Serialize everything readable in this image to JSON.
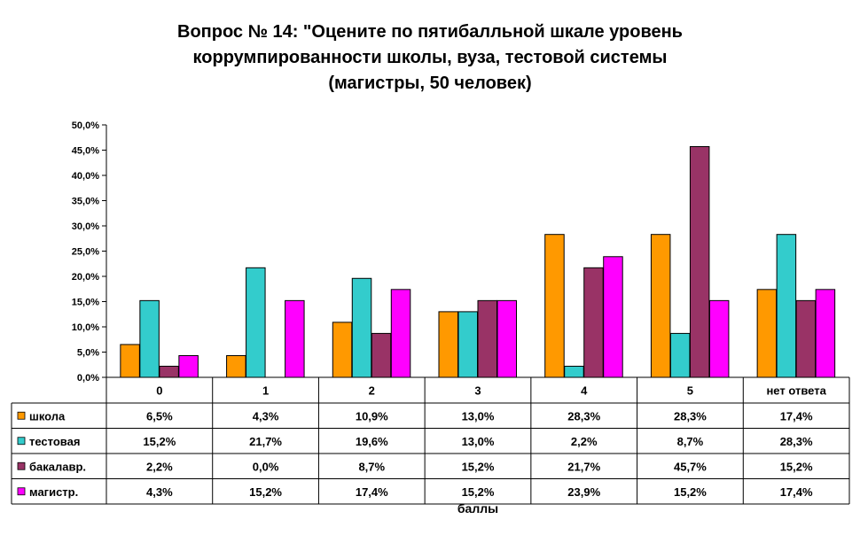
{
  "chart_data": {
    "type": "bar",
    "title_lines": [
      "Вопрос № 14: \"Оцените по пятибалльной шкале уровень",
      "коррумпированности школы, вуза, тестовой системы",
      "(магистры, 50 человек)"
    ],
    "xlabel": "баллы",
    "ylabel": "",
    "ylim": [
      0,
      50
    ],
    "y_ticks": [
      "0,0%",
      "5,0%",
      "10,0%",
      "15,0%",
      "20,0%",
      "25,0%",
      "30,0%",
      "35,0%",
      "40,0%",
      "45,0%",
      "50,0%"
    ],
    "grid": false,
    "legend": "data table",
    "categories": [
      "0",
      "1",
      "2",
      "3",
      "4",
      "5",
      "нет ответа"
    ],
    "series": [
      {
        "name": "школа",
        "color": "#FF9900",
        "values": [
          6.5,
          4.3,
          10.9,
          13.0,
          28.3,
          28.3,
          17.4
        ],
        "labels": [
          "6,5%",
          "4,3%",
          "10,9%",
          "13,0%",
          "28,3%",
          "28,3%",
          "17,4%"
        ]
      },
      {
        "name": "тестовая",
        "color": "#33CCCC",
        "values": [
          15.2,
          21.7,
          19.6,
          13.0,
          2.2,
          8.7,
          28.3
        ],
        "labels": [
          "15,2%",
          "21,7%",
          "19,6%",
          "13,0%",
          "2,2%",
          "8,7%",
          "28,3%"
        ]
      },
      {
        "name": "бакалавр.",
        "color": "#993366",
        "values": [
          2.2,
          0.0,
          8.7,
          15.2,
          21.7,
          45.7,
          15.2
        ],
        "labels": [
          "2,2%",
          "0,0%",
          "8,7%",
          "15,2%",
          "21,7%",
          "45,7%",
          "15,2%"
        ]
      },
      {
        "name": "магистр.",
        "color": "#FF00FF",
        "values": [
          4.3,
          15.2,
          17.4,
          15.2,
          23.9,
          15.2,
          17.4
        ],
        "labels": [
          "4,3%",
          "15,2%",
          "17,4%",
          "15,2%",
          "23,9%",
          "15,2%",
          "17,4%"
        ]
      }
    ]
  }
}
